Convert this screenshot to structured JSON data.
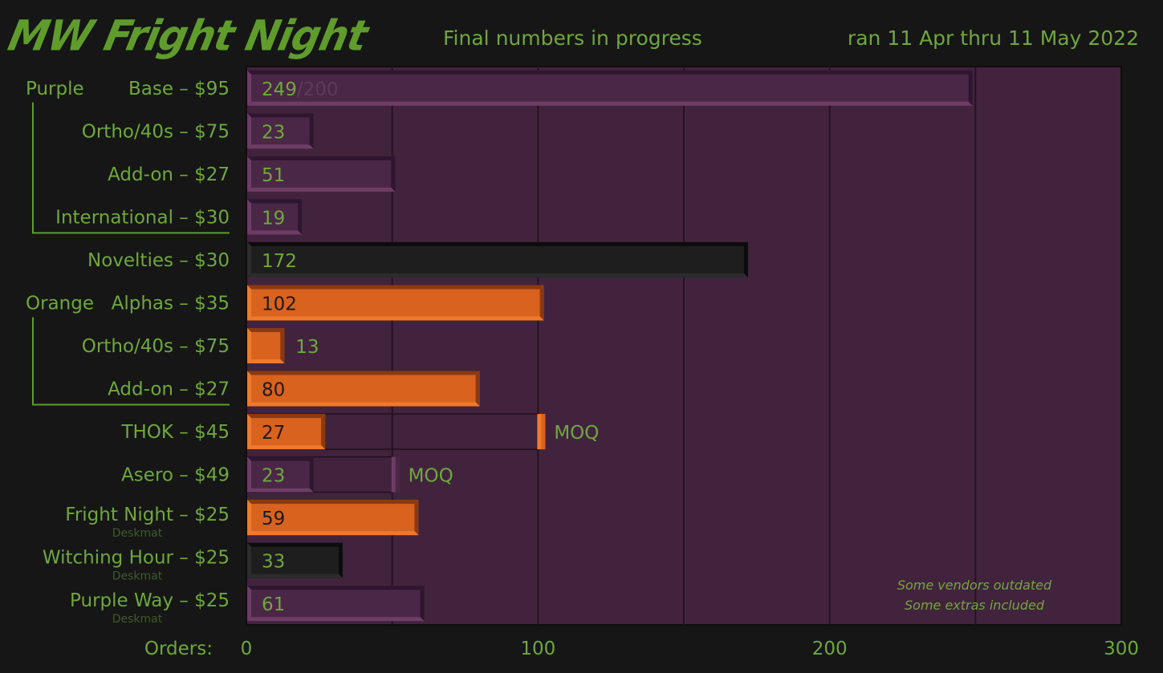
{
  "header": {
    "title": "MW Fright Night",
    "subtitle": "Final numbers in progress",
    "date_range": "ran 11 Apr thru 11 May 2022"
  },
  "colors": {
    "background": "#161616",
    "plot_bg": "#42233d",
    "purple_bar": "#4a2746",
    "purple_edge": "#6e3d66",
    "black_bar": "#1e1e1e",
    "orange_bar": "#d9621f",
    "orange_edge": "#f07a2c",
    "text_green": "#6ea83c"
  },
  "chart_data": {
    "type": "bar",
    "orientation": "horizontal",
    "xlabel": "Orders:",
    "xlim": [
      0,
      300
    ],
    "xticks": [
      0,
      100,
      200,
      300
    ],
    "grid": true,
    "groups": [
      {
        "label": "Purple",
        "first_row": 0,
        "last_row": 3
      },
      {
        "label": "Orange",
        "first_row": 5,
        "last_row": 7
      }
    ],
    "rows": [
      {
        "label": "Base – $95",
        "value": 249,
        "target_text": "/200",
        "style": "purple"
      },
      {
        "label": "Ortho/40s – $75",
        "value": 23,
        "style": "purple"
      },
      {
        "label": "Add-on – $27",
        "value": 51,
        "style": "purple"
      },
      {
        "label": "International – $30",
        "value": 19,
        "style": "purple"
      },
      {
        "label": "Novelties – $30",
        "value": 172,
        "style": "black"
      },
      {
        "label": "Alphas – $35",
        "value": 102,
        "style": "orange"
      },
      {
        "label": "Ortho/40s – $75",
        "value": 13,
        "style": "orange",
        "label_outside": true
      },
      {
        "label": "Add-on – $27",
        "value": 80,
        "style": "orange"
      },
      {
        "label": "THOK – $45",
        "value": 27,
        "style": "orange",
        "moq": 100,
        "moq_label": "MOQ"
      },
      {
        "label": "Asero – $49",
        "value": 23,
        "style": "purple",
        "moq": 50,
        "moq_label": "MOQ"
      },
      {
        "label": "Fright Night – $25",
        "sublabel": "Deskmat",
        "value": 59,
        "style": "orange"
      },
      {
        "label": "Witching Hour – $25",
        "sublabel": "Deskmat",
        "value": 33,
        "style": "black"
      },
      {
        "label": "Purple Way – $25",
        "sublabel": "Deskmat",
        "value": 61,
        "style": "purple"
      }
    ],
    "annotations": [
      "Some vendors outdated",
      "Some extras included"
    ]
  }
}
